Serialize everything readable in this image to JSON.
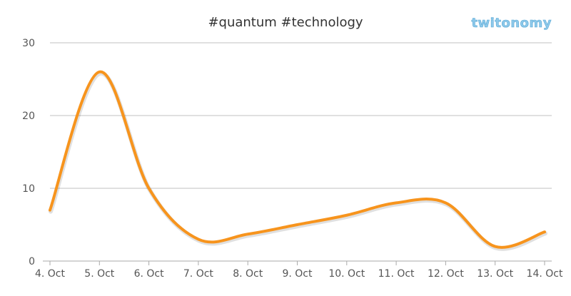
{
  "chart_data": {
    "type": "line",
    "title": "#quantum #technology",
    "logo": {
      "text": "twitonomy",
      "color": "#8ec9ea"
    },
    "xlabel": "",
    "ylabel": "",
    "categories": [
      "4. Oct",
      "5. Oct",
      "6. Oct",
      "7. Oct",
      "8. Oct",
      "9. Oct",
      "10. Oct",
      "11. Oct",
      "12. Oct",
      "13. Oct",
      "14. Oct"
    ],
    "series": [
      {
        "values": [
          7,
          26,
          10,
          3,
          3.7,
          5,
          6.3,
          8,
          8,
          2,
          4
        ],
        "color": "#f7941d"
      }
    ],
    "ylim": [
      0,
      30
    ],
    "yticks": [
      0,
      10,
      20,
      30
    ],
    "grid": true,
    "gridColor": "#c0c0c0",
    "legend": "none"
  }
}
